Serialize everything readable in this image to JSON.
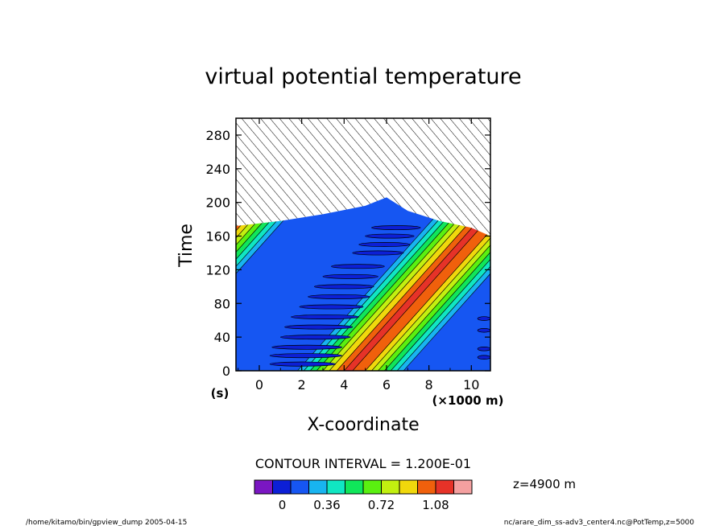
{
  "chart_data": {
    "type": "heatmap",
    "title": "virtual potential temperature",
    "xlabel": "X-coordinate",
    "ylabel": "Time",
    "x_unit": "(×1000 m)",
    "y_unit": "(s)",
    "xlim": [
      -1.1,
      10.9
    ],
    "ylim": [
      0,
      300
    ],
    "x_ticks": [
      "0",
      "2",
      "4",
      "6",
      "8",
      "10"
    ],
    "y_ticks": [
      "0",
      "40",
      "80",
      "120",
      "160",
      "200",
      "240",
      "280"
    ],
    "contour_interval_label": "CONTOUR INTERVAL = 1.200E-01",
    "level_note": "z=4900 m",
    "colorbar": {
      "colors": [
        "#7a16c2",
        "#0c1fd6",
        "#1656f2",
        "#18b4f0",
        "#10e6c2",
        "#10e65a",
        "#5af010",
        "#c2f010",
        "#f0d80c",
        "#f0600c",
        "#e63228",
        "#f4a0a0"
      ],
      "tick_labels": [
        "0",
        "0.36",
        "0.72",
        "1.08"
      ]
    },
    "features": {
      "hatched_region": "upper-left, above about t = 160-210 s (undefined values)",
      "diagonal_band_peak": 1.1,
      "background_value": 0.06
    }
  },
  "footer": {
    "left": "/home/kitamo/bin/gpview_dump  2005-04-15",
    "right": "nc/arare_dim_ss-adv3_center4.nc@PotTemp,z=5000"
  }
}
